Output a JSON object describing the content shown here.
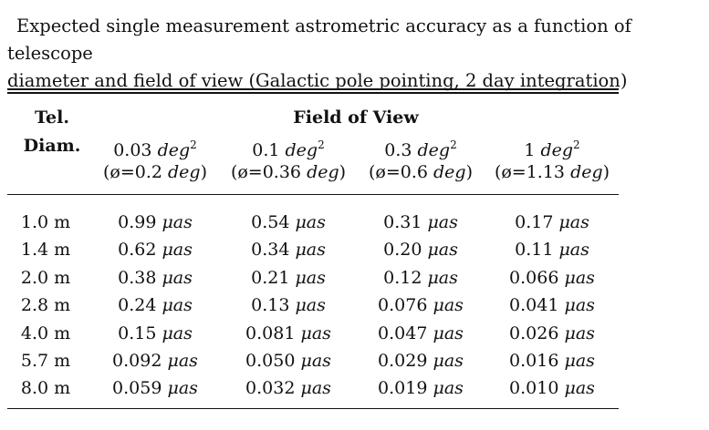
{
  "caption": {
    "line1": "Expected single measurement astrometric accuracy as a function of telescope",
    "line2": "diameter and field of view (Galactic pole pointing, 2 day integration)"
  },
  "table": {
    "row_header_line1": "Tel.",
    "row_header_line2": "Diam.",
    "group_header": "Field of View",
    "columns": [
      {
        "area": "0.03",
        "unit": "deg",
        "exp": "2",
        "sub_prefix": "(ø=0.2 ",
        "sub_unit": "deg",
        "sub_suffix": ")"
      },
      {
        "area": "0.1",
        "unit": "deg",
        "exp": "2",
        "sub_prefix": "(ø=0.36 ",
        "sub_unit": "deg",
        "sub_suffix": ")"
      },
      {
        "area": "0.3",
        "unit": "deg",
        "exp": "2",
        "sub_prefix": "(ø=0.6 ",
        "sub_unit": "deg",
        "sub_suffix": ")"
      },
      {
        "area": "1",
        "unit": "deg",
        "exp": "2",
        "sub_prefix": "(ø=1.13 ",
        "sub_unit": "deg",
        "sub_suffix": ")"
      }
    ],
    "value_unit": "μas",
    "rows": [
      {
        "diam": "1.0 m",
        "values": [
          "0.99",
          "0.54",
          "0.31",
          "0.17"
        ]
      },
      {
        "diam": "1.4 m",
        "values": [
          "0.62",
          "0.34",
          "0.20",
          "0.11"
        ]
      },
      {
        "diam": "2.0 m",
        "values": [
          "0.38",
          "0.21",
          "0.12",
          "0.066"
        ]
      },
      {
        "diam": "2.8 m",
        "values": [
          "0.24",
          "0.13",
          "0.076",
          "0.041"
        ]
      },
      {
        "diam": "4.0 m",
        "values": [
          "0.15",
          "0.081",
          "0.047",
          "0.026"
        ]
      },
      {
        "diam": "5.7 m",
        "values": [
          "0.092",
          "0.050",
          "0.029",
          "0.016"
        ]
      },
      {
        "diam": "8.0 m",
        "values": [
          "0.059",
          "0.032",
          "0.019",
          "0.010"
        ]
      }
    ]
  }
}
